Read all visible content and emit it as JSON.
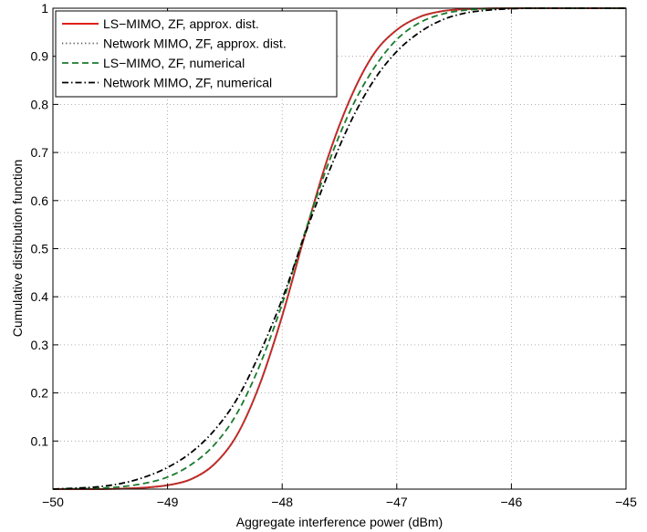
{
  "chart_data": {
    "type": "line",
    "title": "",
    "xlabel": "Aggregate interference power (dBm)",
    "ylabel": "Cumulative distribution function",
    "xlim": [
      -50,
      -45
    ],
    "ylim": [
      0,
      1
    ],
    "xticks": [
      -50,
      -49,
      -48,
      -47,
      -46,
      -45
    ],
    "xtick_labels": [
      "−50",
      "−49",
      "−48",
      "−47",
      "−46",
      "−45"
    ],
    "yticks": [
      0.1,
      0.2,
      0.3,
      0.4,
      0.5,
      0.6,
      0.7,
      0.8,
      0.9,
      1
    ],
    "ytick_labels": [
      "0.1",
      "0.2",
      "0.3",
      "0.4",
      "0.5",
      "0.6",
      "0.7",
      "0.8",
      "0.9",
      "1"
    ],
    "grid": true,
    "legend_position": "top-left",
    "series": [
      {
        "name": "LS−MIMO, ZF, approx. dist.",
        "color": "#e0201b",
        "dash": "solid",
        "x": [
          -50.0,
          -49.6,
          -49.4,
          -49.2,
          -49.0,
          -48.8,
          -48.6,
          -48.4,
          -48.2,
          -48.0,
          -47.8,
          -47.6,
          -47.4,
          -47.2,
          -47.0,
          -46.8,
          -46.6,
          -46.4,
          -46.2,
          -46.0,
          -45.5,
          -45.0
        ],
        "y": [
          0.0,
          0.0,
          0.001,
          0.003,
          0.008,
          0.02,
          0.05,
          0.11,
          0.215,
          0.36,
          0.53,
          0.69,
          0.815,
          0.905,
          0.955,
          0.982,
          0.994,
          0.998,
          0.9995,
          1.0,
          1.0,
          1.0
        ]
      },
      {
        "name": "Network MIMO, ZF, approx. dist.",
        "color": "#555555",
        "dash": "dotted",
        "x": [
          -50.0,
          -49.6,
          -49.4,
          -49.2,
          -49.0,
          -48.8,
          -48.6,
          -48.4,
          -48.2,
          -48.0,
          -47.8,
          -47.6,
          -47.4,
          -47.2,
          -47.0,
          -46.8,
          -46.6,
          -46.4,
          -46.2,
          -46.0,
          -45.5,
          -45.0
        ],
        "y": [
          0.0,
          0.0,
          0.001,
          0.003,
          0.008,
          0.02,
          0.05,
          0.11,
          0.215,
          0.36,
          0.53,
          0.69,
          0.815,
          0.905,
          0.955,
          0.982,
          0.994,
          0.998,
          0.9995,
          1.0,
          1.0,
          1.0
        ]
      },
      {
        "name": "LS−MIMO, ZF, numerical",
        "color": "#1a7a2e",
        "dash": "dashed",
        "x": [
          -50.0,
          -49.6,
          -49.4,
          -49.2,
          -49.0,
          -48.8,
          -48.6,
          -48.4,
          -48.2,
          -48.0,
          -47.8,
          -47.6,
          -47.4,
          -47.2,
          -47.0,
          -46.8,
          -46.6,
          -46.4,
          -46.2,
          -46.0,
          -45.8,
          -45.5,
          -45.0
        ],
        "y": [
          0.0,
          0.002,
          0.005,
          0.012,
          0.025,
          0.05,
          0.09,
          0.155,
          0.255,
          0.385,
          0.535,
          0.675,
          0.79,
          0.875,
          0.935,
          0.97,
          0.988,
          0.996,
          0.999,
          1.0,
          1.0,
          1.0,
          1.0
        ]
      },
      {
        "name": "Network MIMO, ZF, numerical",
        "color": "#000000",
        "dash": "dashdot",
        "x": [
          -50.0,
          -49.6,
          -49.4,
          -49.2,
          -49.0,
          -48.8,
          -48.6,
          -48.4,
          -48.2,
          -48.0,
          -47.8,
          -47.6,
          -47.4,
          -47.2,
          -47.0,
          -46.8,
          -46.6,
          -46.4,
          -46.2,
          -46.0,
          -45.8,
          -45.6,
          -45.5,
          -45.0
        ],
        "y": [
          0.0,
          0.005,
          0.012,
          0.025,
          0.045,
          0.075,
          0.12,
          0.185,
          0.28,
          0.395,
          0.53,
          0.655,
          0.765,
          0.85,
          0.91,
          0.95,
          0.976,
          0.99,
          0.996,
          0.999,
          1.0,
          1.0,
          1.0,
          1.0
        ]
      }
    ]
  }
}
